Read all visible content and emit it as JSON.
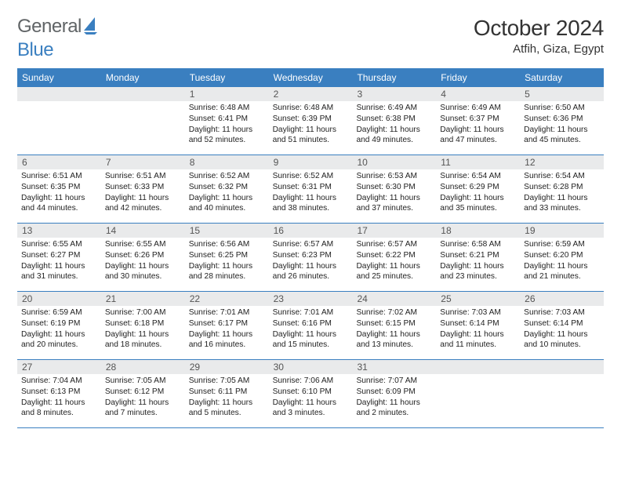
{
  "brand": {
    "text1": "General",
    "text2": "Blue"
  },
  "title": "October 2024",
  "location": "Atfih, Giza, Egypt",
  "colors": {
    "accent": "#3a7fc0",
    "band": "#e9eaeb",
    "text": "#333333",
    "brand_gray": "#606466"
  },
  "dayheads": [
    "Sunday",
    "Monday",
    "Tuesday",
    "Wednesday",
    "Thursday",
    "Friday",
    "Saturday"
  ],
  "weeks": [
    [
      {
        "n": "",
        "sr": "",
        "ss": "",
        "dl1": "",
        "dl2": ""
      },
      {
        "n": "",
        "sr": "",
        "ss": "",
        "dl1": "",
        "dl2": ""
      },
      {
        "n": "1",
        "sr": "Sunrise: 6:48 AM",
        "ss": "Sunset: 6:41 PM",
        "dl1": "Daylight: 11 hours",
        "dl2": "and 52 minutes."
      },
      {
        "n": "2",
        "sr": "Sunrise: 6:48 AM",
        "ss": "Sunset: 6:39 PM",
        "dl1": "Daylight: 11 hours",
        "dl2": "and 51 minutes."
      },
      {
        "n": "3",
        "sr": "Sunrise: 6:49 AM",
        "ss": "Sunset: 6:38 PM",
        "dl1": "Daylight: 11 hours",
        "dl2": "and 49 minutes."
      },
      {
        "n": "4",
        "sr": "Sunrise: 6:49 AM",
        "ss": "Sunset: 6:37 PM",
        "dl1": "Daylight: 11 hours",
        "dl2": "and 47 minutes."
      },
      {
        "n": "5",
        "sr": "Sunrise: 6:50 AM",
        "ss": "Sunset: 6:36 PM",
        "dl1": "Daylight: 11 hours",
        "dl2": "and 45 minutes."
      }
    ],
    [
      {
        "n": "6",
        "sr": "Sunrise: 6:51 AM",
        "ss": "Sunset: 6:35 PM",
        "dl1": "Daylight: 11 hours",
        "dl2": "and 44 minutes."
      },
      {
        "n": "7",
        "sr": "Sunrise: 6:51 AM",
        "ss": "Sunset: 6:33 PM",
        "dl1": "Daylight: 11 hours",
        "dl2": "and 42 minutes."
      },
      {
        "n": "8",
        "sr": "Sunrise: 6:52 AM",
        "ss": "Sunset: 6:32 PM",
        "dl1": "Daylight: 11 hours",
        "dl2": "and 40 minutes."
      },
      {
        "n": "9",
        "sr": "Sunrise: 6:52 AM",
        "ss": "Sunset: 6:31 PM",
        "dl1": "Daylight: 11 hours",
        "dl2": "and 38 minutes."
      },
      {
        "n": "10",
        "sr": "Sunrise: 6:53 AM",
        "ss": "Sunset: 6:30 PM",
        "dl1": "Daylight: 11 hours",
        "dl2": "and 37 minutes."
      },
      {
        "n": "11",
        "sr": "Sunrise: 6:54 AM",
        "ss": "Sunset: 6:29 PM",
        "dl1": "Daylight: 11 hours",
        "dl2": "and 35 minutes."
      },
      {
        "n": "12",
        "sr": "Sunrise: 6:54 AM",
        "ss": "Sunset: 6:28 PM",
        "dl1": "Daylight: 11 hours",
        "dl2": "and 33 minutes."
      }
    ],
    [
      {
        "n": "13",
        "sr": "Sunrise: 6:55 AM",
        "ss": "Sunset: 6:27 PM",
        "dl1": "Daylight: 11 hours",
        "dl2": "and 31 minutes."
      },
      {
        "n": "14",
        "sr": "Sunrise: 6:55 AM",
        "ss": "Sunset: 6:26 PM",
        "dl1": "Daylight: 11 hours",
        "dl2": "and 30 minutes."
      },
      {
        "n": "15",
        "sr": "Sunrise: 6:56 AM",
        "ss": "Sunset: 6:25 PM",
        "dl1": "Daylight: 11 hours",
        "dl2": "and 28 minutes."
      },
      {
        "n": "16",
        "sr": "Sunrise: 6:57 AM",
        "ss": "Sunset: 6:23 PM",
        "dl1": "Daylight: 11 hours",
        "dl2": "and 26 minutes."
      },
      {
        "n": "17",
        "sr": "Sunrise: 6:57 AM",
        "ss": "Sunset: 6:22 PM",
        "dl1": "Daylight: 11 hours",
        "dl2": "and 25 minutes."
      },
      {
        "n": "18",
        "sr": "Sunrise: 6:58 AM",
        "ss": "Sunset: 6:21 PM",
        "dl1": "Daylight: 11 hours",
        "dl2": "and 23 minutes."
      },
      {
        "n": "19",
        "sr": "Sunrise: 6:59 AM",
        "ss": "Sunset: 6:20 PM",
        "dl1": "Daylight: 11 hours",
        "dl2": "and 21 minutes."
      }
    ],
    [
      {
        "n": "20",
        "sr": "Sunrise: 6:59 AM",
        "ss": "Sunset: 6:19 PM",
        "dl1": "Daylight: 11 hours",
        "dl2": "and 20 minutes."
      },
      {
        "n": "21",
        "sr": "Sunrise: 7:00 AM",
        "ss": "Sunset: 6:18 PM",
        "dl1": "Daylight: 11 hours",
        "dl2": "and 18 minutes."
      },
      {
        "n": "22",
        "sr": "Sunrise: 7:01 AM",
        "ss": "Sunset: 6:17 PM",
        "dl1": "Daylight: 11 hours",
        "dl2": "and 16 minutes."
      },
      {
        "n": "23",
        "sr": "Sunrise: 7:01 AM",
        "ss": "Sunset: 6:16 PM",
        "dl1": "Daylight: 11 hours",
        "dl2": "and 15 minutes."
      },
      {
        "n": "24",
        "sr": "Sunrise: 7:02 AM",
        "ss": "Sunset: 6:15 PM",
        "dl1": "Daylight: 11 hours",
        "dl2": "and 13 minutes."
      },
      {
        "n": "25",
        "sr": "Sunrise: 7:03 AM",
        "ss": "Sunset: 6:14 PM",
        "dl1": "Daylight: 11 hours",
        "dl2": "and 11 minutes."
      },
      {
        "n": "26",
        "sr": "Sunrise: 7:03 AM",
        "ss": "Sunset: 6:14 PM",
        "dl1": "Daylight: 11 hours",
        "dl2": "and 10 minutes."
      }
    ],
    [
      {
        "n": "27",
        "sr": "Sunrise: 7:04 AM",
        "ss": "Sunset: 6:13 PM",
        "dl1": "Daylight: 11 hours",
        "dl2": "and 8 minutes."
      },
      {
        "n": "28",
        "sr": "Sunrise: 7:05 AM",
        "ss": "Sunset: 6:12 PM",
        "dl1": "Daylight: 11 hours",
        "dl2": "and 7 minutes."
      },
      {
        "n": "29",
        "sr": "Sunrise: 7:05 AM",
        "ss": "Sunset: 6:11 PM",
        "dl1": "Daylight: 11 hours",
        "dl2": "and 5 minutes."
      },
      {
        "n": "30",
        "sr": "Sunrise: 7:06 AM",
        "ss": "Sunset: 6:10 PM",
        "dl1": "Daylight: 11 hours",
        "dl2": "and 3 minutes."
      },
      {
        "n": "31",
        "sr": "Sunrise: 7:07 AM",
        "ss": "Sunset: 6:09 PM",
        "dl1": "Daylight: 11 hours",
        "dl2": "and 2 minutes."
      },
      {
        "n": "",
        "sr": "",
        "ss": "",
        "dl1": "",
        "dl2": ""
      },
      {
        "n": "",
        "sr": "",
        "ss": "",
        "dl1": "",
        "dl2": ""
      }
    ]
  ]
}
